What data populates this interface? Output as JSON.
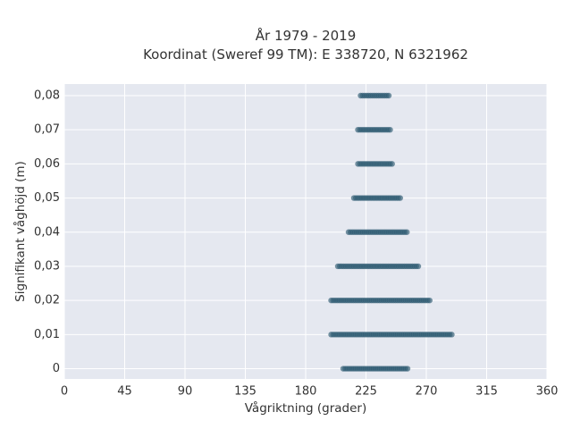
{
  "chart_data": {
    "type": "scatter",
    "title_line1": "År 1979 - 2019",
    "title_line2": "Koordinat (Sweref 99 TM): E 338720, N 6321962",
    "xlabel": "Vågriktning (grader)",
    "ylabel": "Signifikant våghöjd (m)",
    "xlim": [
      0,
      360
    ],
    "ylim": [
      -0.003,
      0.0834
    ],
    "xticks": [
      0,
      45,
      90,
      135,
      180,
      225,
      270,
      315,
      360
    ],
    "xtick_labels": [
      "0",
      "45",
      "90",
      "135",
      "180",
      "225",
      "270",
      "315",
      "360"
    ],
    "yticks": [
      0,
      0.01,
      0.02,
      0.03,
      0.04,
      0.05,
      0.06,
      0.07,
      0.08
    ],
    "ytick_labels": [
      "0",
      "0,01",
      "0,02",
      "0,03",
      "0,04",
      "0,05",
      "0,06",
      "0,07",
      "0,08"
    ],
    "grid": true,
    "legend": "none",
    "bands": [
      {
        "y": 0.0,
        "x_min": 208,
        "x_max": 256
      },
      {
        "y": 0.01,
        "x_min": 199,
        "x_max": 289
      },
      {
        "y": 0.02,
        "x_min": 199,
        "x_max": 273
      },
      {
        "y": 0.03,
        "x_min": 204,
        "x_max": 265
      },
      {
        "y": 0.04,
        "x_min": 212,
        "x_max": 256
      },
      {
        "y": 0.05,
        "x_min": 216,
        "x_max": 251
      },
      {
        "y": 0.06,
        "x_min": 219,
        "x_max": 245
      },
      {
        "y": 0.07,
        "x_min": 219,
        "x_max": 243
      },
      {
        "y": 0.08,
        "x_min": 221,
        "x_max": 243
      }
    ],
    "colors": {
      "marker": "#2e5a72",
      "plot_bg": "#e5e8f0",
      "grid": "#ffffff"
    }
  }
}
